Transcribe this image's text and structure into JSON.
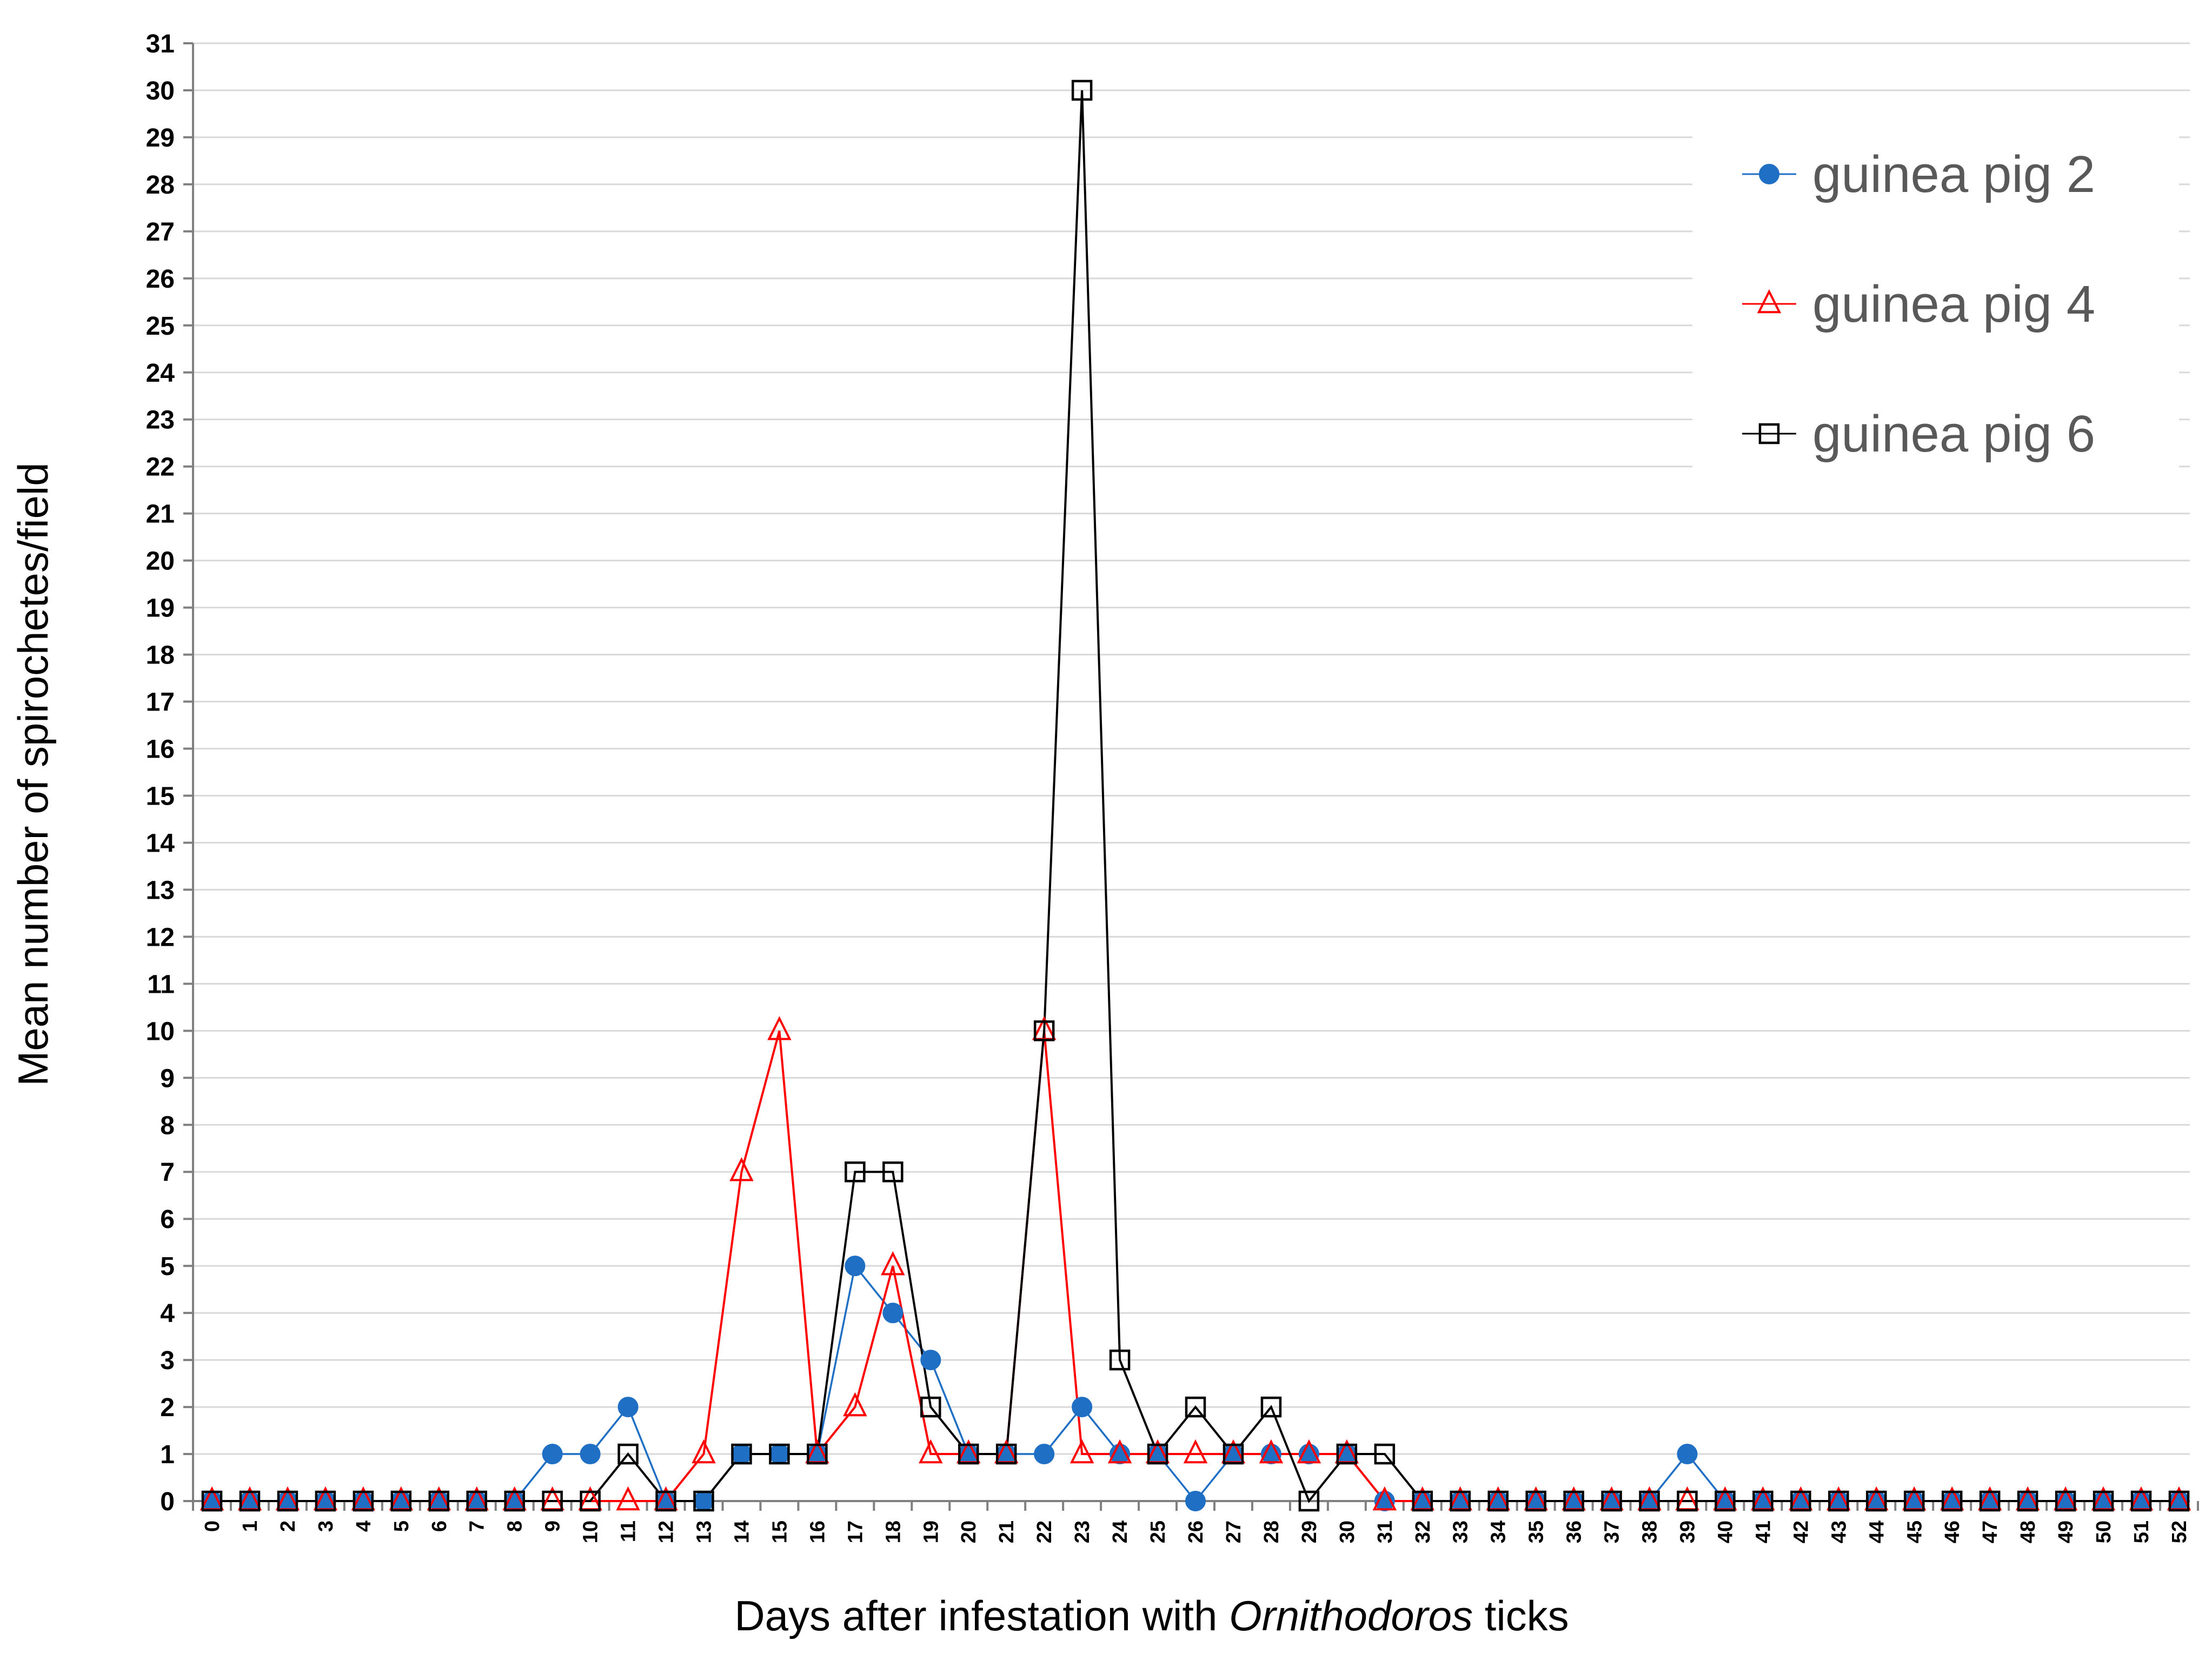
{
  "chart_data": {
    "type": "line",
    "title": "",
    "ylabel": "Mean number of spirochetes/field",
    "xlabel_parts": [
      {
        "text": "Days after infestation with ",
        "italic": false
      },
      {
        "text": "Ornithodoros",
        "italic": true
      },
      {
        "text": " ticks",
        "italic": false
      }
    ],
    "x": [
      0,
      1,
      2,
      3,
      4,
      5,
      6,
      7,
      8,
      9,
      10,
      11,
      12,
      13,
      14,
      15,
      16,
      17,
      18,
      19,
      20,
      21,
      22,
      23,
      24,
      25,
      26,
      27,
      28,
      29,
      30,
      31,
      32,
      33,
      34,
      35,
      36,
      37,
      38,
      39,
      40,
      41,
      42,
      43,
      44,
      45,
      46,
      47,
      48,
      49,
      50,
      51,
      52
    ],
    "ylim": [
      0,
      31
    ],
    "yticks": [
      0,
      1,
      2,
      3,
      4,
      5,
      6,
      7,
      8,
      9,
      10,
      11,
      12,
      13,
      14,
      15,
      16,
      17,
      18,
      19,
      20,
      21,
      22,
      23,
      24,
      25,
      26,
      27,
      28,
      29,
      30,
      31
    ],
    "grid": "horizontal",
    "legend_position": "top-right",
    "series": [
      {
        "name": "guinea pig 2",
        "marker": "circle",
        "color": "#1F6FC5",
        "values": [
          0,
          0,
          0,
          0,
          0,
          0,
          0,
          0,
          0,
          1,
          1,
          2,
          0,
          0,
          1,
          1,
          1,
          5,
          4,
          3,
          1,
          1,
          1,
          2,
          1,
          1,
          0,
          1,
          1,
          1,
          1,
          0,
          0,
          0,
          0,
          0,
          0,
          0,
          0,
          1,
          0,
          0,
          0,
          0,
          0,
          0,
          0,
          0,
          0,
          0,
          0,
          0,
          0
        ]
      },
      {
        "name": "guinea pig 4",
        "marker": "triangle",
        "color": "#FF0000",
        "values": [
          0,
          0,
          0,
          0,
          0,
          0,
          0,
          0,
          0,
          0,
          0,
          0,
          0,
          1,
          7,
          10,
          1,
          2,
          5,
          1,
          1,
          1,
          10,
          1,
          1,
          1,
          1,
          1,
          1,
          1,
          1,
          0,
          0,
          0,
          0,
          0,
          0,
          0,
          0,
          0,
          0,
          0,
          0,
          0,
          0,
          0,
          0,
          0,
          0,
          0,
          0,
          0,
          0
        ]
      },
      {
        "name": "guinea pig 6",
        "marker": "square",
        "color": "#000000",
        "values": [
          0,
          0,
          0,
          0,
          0,
          0,
          0,
          0,
          0,
          0,
          0,
          1,
          0,
          0,
          1,
          1,
          1,
          7,
          7,
          2,
          1,
          1,
          10,
          30,
          3,
          1,
          2,
          1,
          2,
          0,
          1,
          1,
          0,
          0,
          0,
          0,
          0,
          0,
          0,
          0,
          0,
          0,
          0,
          0,
          0,
          0,
          0,
          0,
          0,
          0,
          0,
          0,
          0
        ]
      }
    ]
  }
}
